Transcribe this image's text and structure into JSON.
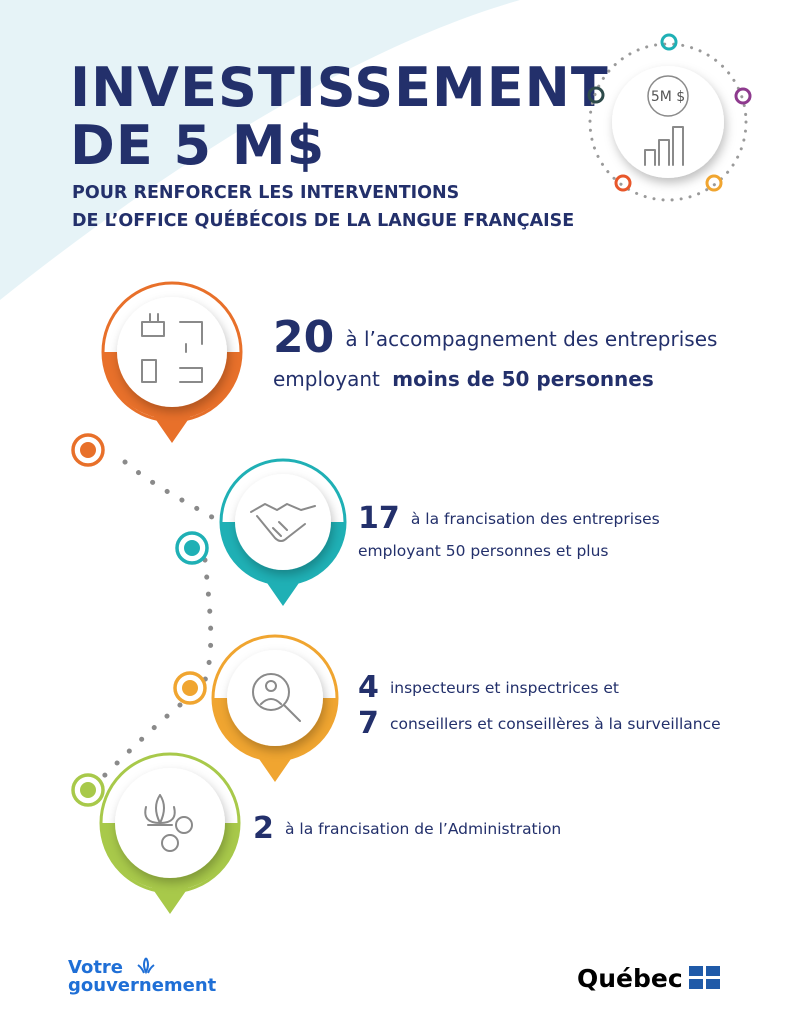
{
  "header": {
    "title": [
      "INVESTISSEMENT",
      "DE 5 M$"
    ],
    "subtitle": [
      "POUR RENFORCER LES INTERVENTIONS",
      "DE L’OFFICE QUÉBÉCOIS DE LA LANGUE FRANÇAISE"
    ]
  },
  "badge": {
    "label": "5M $"
  },
  "items": [
    {
      "number": "20",
      "text": "à l’accompagnement des entreprises",
      "text2": "employant",
      "emphasis": "moins de 50 personnes"
    },
    {
      "number": "17",
      "text": "à la francisation des entreprises",
      "text2": "employant 50 personnes et plus"
    },
    {
      "number": "4",
      "text": "inspecteurs et inspectrices et",
      "number2": "7",
      "text2": "conseillers et conseillères à la surveillance"
    },
    {
      "number": "2",
      "text": "à la francisation de l’Administration"
    }
  ],
  "footer": {
    "left": [
      "Votre",
      "gouvernement"
    ],
    "right": "Québec"
  }
}
